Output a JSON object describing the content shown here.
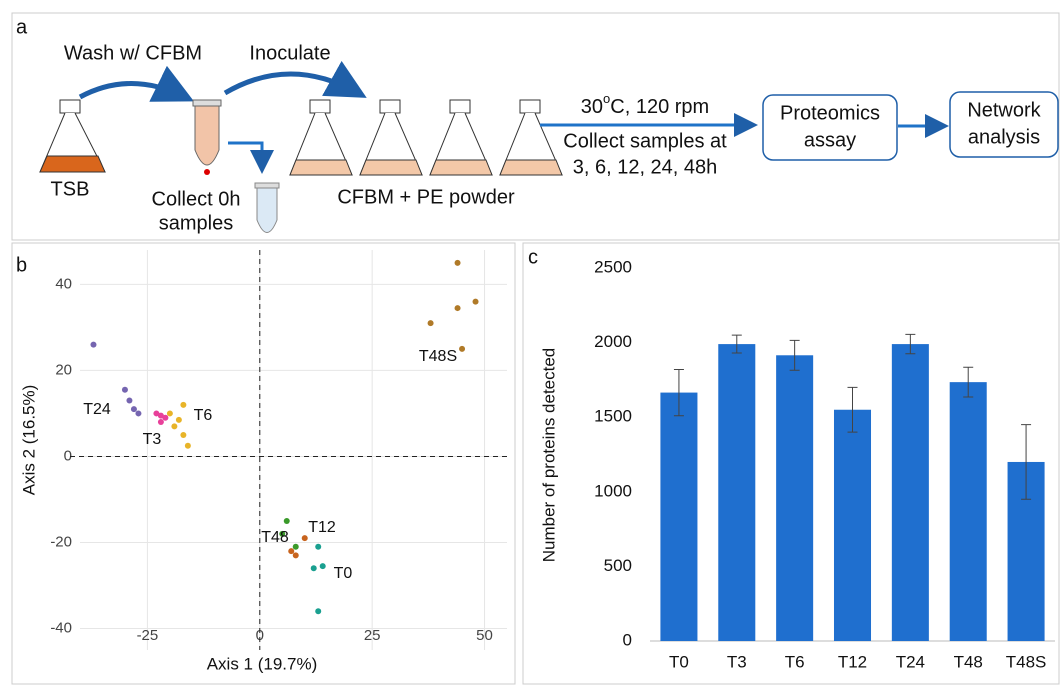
{
  "diagram": {
    "panel_a": "a",
    "panel_b": "b",
    "panel_c": "c",
    "wash": "Wash w/ CFBM",
    "inoculate": "Inoculate",
    "tsb": "TSB",
    "collect_0h": [
      "Collect 0h",
      "samples"
    ],
    "medium": "CFBM + PE powder",
    "condition_parts": [
      "30",
      "o",
      "C, 120 rpm"
    ],
    "collect_at": "Collect samples at",
    "times": "3, 6, 12, 24, 48h",
    "proteomics": [
      "Proteomics",
      "assay"
    ],
    "network": [
      "Network",
      "analysis"
    ]
  },
  "chart_data": [
    {
      "type": "scatter",
      "xlabel": "Axis 1 (19.7%)",
      "ylabel": "Axis 2 (16.5%)",
      "xlim": [
        -40,
        55
      ],
      "ylim": [
        -45,
        48
      ],
      "xticks": [
        -25,
        0,
        25,
        50
      ],
      "yticks": [
        -40,
        -20,
        0,
        20,
        40
      ],
      "grid": true,
      "series": [
        {
          "name": "T24",
          "color": "#7565b0",
          "x": [
            -37,
            -30,
            -29,
            -28,
            -27
          ],
          "y": [
            26,
            15.5,
            13,
            11,
            10
          ]
        },
        {
          "name": "T3",
          "color": "#e8409a",
          "x": [
            -23,
            -22,
            -21,
            -22
          ],
          "y": [
            10,
            9.5,
            9,
            8
          ]
        },
        {
          "name": "T6",
          "color": "#e8b428",
          "x": [
            -18,
            -17,
            -19,
            -17,
            -16,
            -20
          ],
          "y": [
            8.5,
            12,
            7,
            5,
            2.5,
            10
          ]
        },
        {
          "name": "T48S",
          "color": "#b07a28",
          "x": [
            44,
            48,
            44,
            38,
            45
          ],
          "y": [
            45,
            36,
            34.5,
            31,
            25
          ]
        },
        {
          "name": "T48",
          "color": "#3a9a2a",
          "x": [
            6,
            8,
            5
          ],
          "y": [
            -15,
            -21,
            -18
          ]
        },
        {
          "name": "T12",
          "color": "#c8641e",
          "x": [
            8,
            7,
            10
          ],
          "y": [
            -23,
            -22,
            -19
          ]
        },
        {
          "name": "T0",
          "color": "#1aa090",
          "x": [
            12,
            14,
            13,
            13
          ],
          "y": [
            -26,
            -25.5,
            -21,
            -36
          ]
        }
      ]
    },
    {
      "type": "bar",
      "ylabel": "Number of proteins detected",
      "categories": [
        "T0",
        "T3",
        "T6",
        "T12",
        "T24",
        "T48",
        "T48S"
      ],
      "values": [
        1665,
        1990,
        1915,
        1550,
        1990,
        1735,
        1200
      ],
      "errors": [
        155,
        60,
        100,
        150,
        65,
        100,
        250
      ],
      "color": "#1f6fcf",
      "ylim": [
        0,
        2500
      ],
      "yticks": [
        0,
        500,
        1000,
        1500,
        2000,
        2500
      ]
    }
  ]
}
